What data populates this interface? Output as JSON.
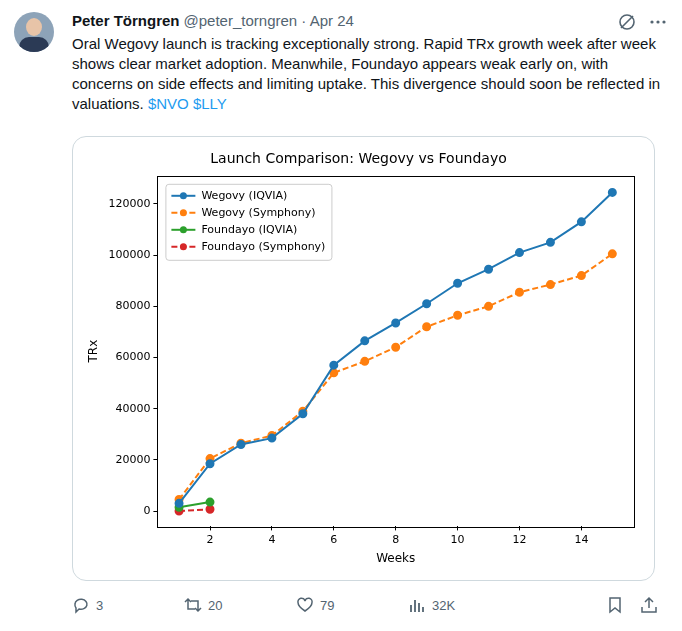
{
  "header": {
    "name": "Peter Törngren",
    "handle_date": "@peter_torngren · Apr 24"
  },
  "body": {
    "text": "Oral Wegovy launch is tracking exceptionally strong. Rapid TRx growth week after week shows clear market adoption. Meanwhile, Foundayo appears weak early on, with concerns on side effects and limiting uptake. This divergence should soon be reflected in valuations.",
    "cashtags": [
      "$NVO",
      "$LLY"
    ]
  },
  "stats": {
    "replies": 3,
    "retweets": 20,
    "likes": 79,
    "views": "32K"
  },
  "chart_data": {
    "type": "line",
    "title": "Launch Comparison: Wegovy vs Foundayo",
    "x_label": "Weeks",
    "y_label": "TRx",
    "x": [
      1,
      2,
      3,
      4,
      5,
      6,
      7,
      8,
      9,
      10,
      11,
      12,
      13,
      14,
      15
    ],
    "series": [
      {
        "name": "Wegovy (IQVIA)",
        "color": "#1f77b4",
        "marker": "circle",
        "line_style": "solid",
        "values": [
          3000,
          18500,
          26000,
          28500,
          38000,
          57000,
          66500,
          73500,
          81000,
          89000,
          94500,
          101000,
          105000,
          113000,
          124500
        ]
      },
      {
        "name": "Wegovy (Symphony)",
        "color": "#ff7f0e",
        "marker": "circle",
        "line_style": "dashed",
        "values": [
          4500,
          20500,
          26500,
          29500,
          39000,
          54000,
          58500,
          64000,
          72000,
          76500,
          80000,
          85500,
          88500,
          92000,
          100500
        ]
      },
      {
        "name": "Foundayo (IQVIA)",
        "color": "#2ca02c",
        "marker": "circle",
        "line_style": "solid",
        "values": [
          1500,
          3500,
          null,
          null,
          null,
          null,
          null,
          null,
          null,
          null,
          null,
          null,
          null,
          null,
          null
        ]
      },
      {
        "name": "Foundayo (Symphony)",
        "color": "#d62728",
        "marker": "circle",
        "line_style": "dashed",
        "values": [
          0,
          700,
          null,
          null,
          null,
          null,
          null,
          null,
          null,
          null,
          null,
          null,
          null,
          null,
          null
        ]
      }
    ],
    "xlim": [
      0.3,
      15.7
    ],
    "xticks": [
      2,
      4,
      6,
      8,
      10,
      12,
      14
    ],
    "ylim": [
      -6000,
      131000
    ],
    "yticks": [
      0,
      20000,
      40000,
      60000,
      80000,
      100000,
      120000
    ],
    "grid": false,
    "legend": "upper left"
  }
}
